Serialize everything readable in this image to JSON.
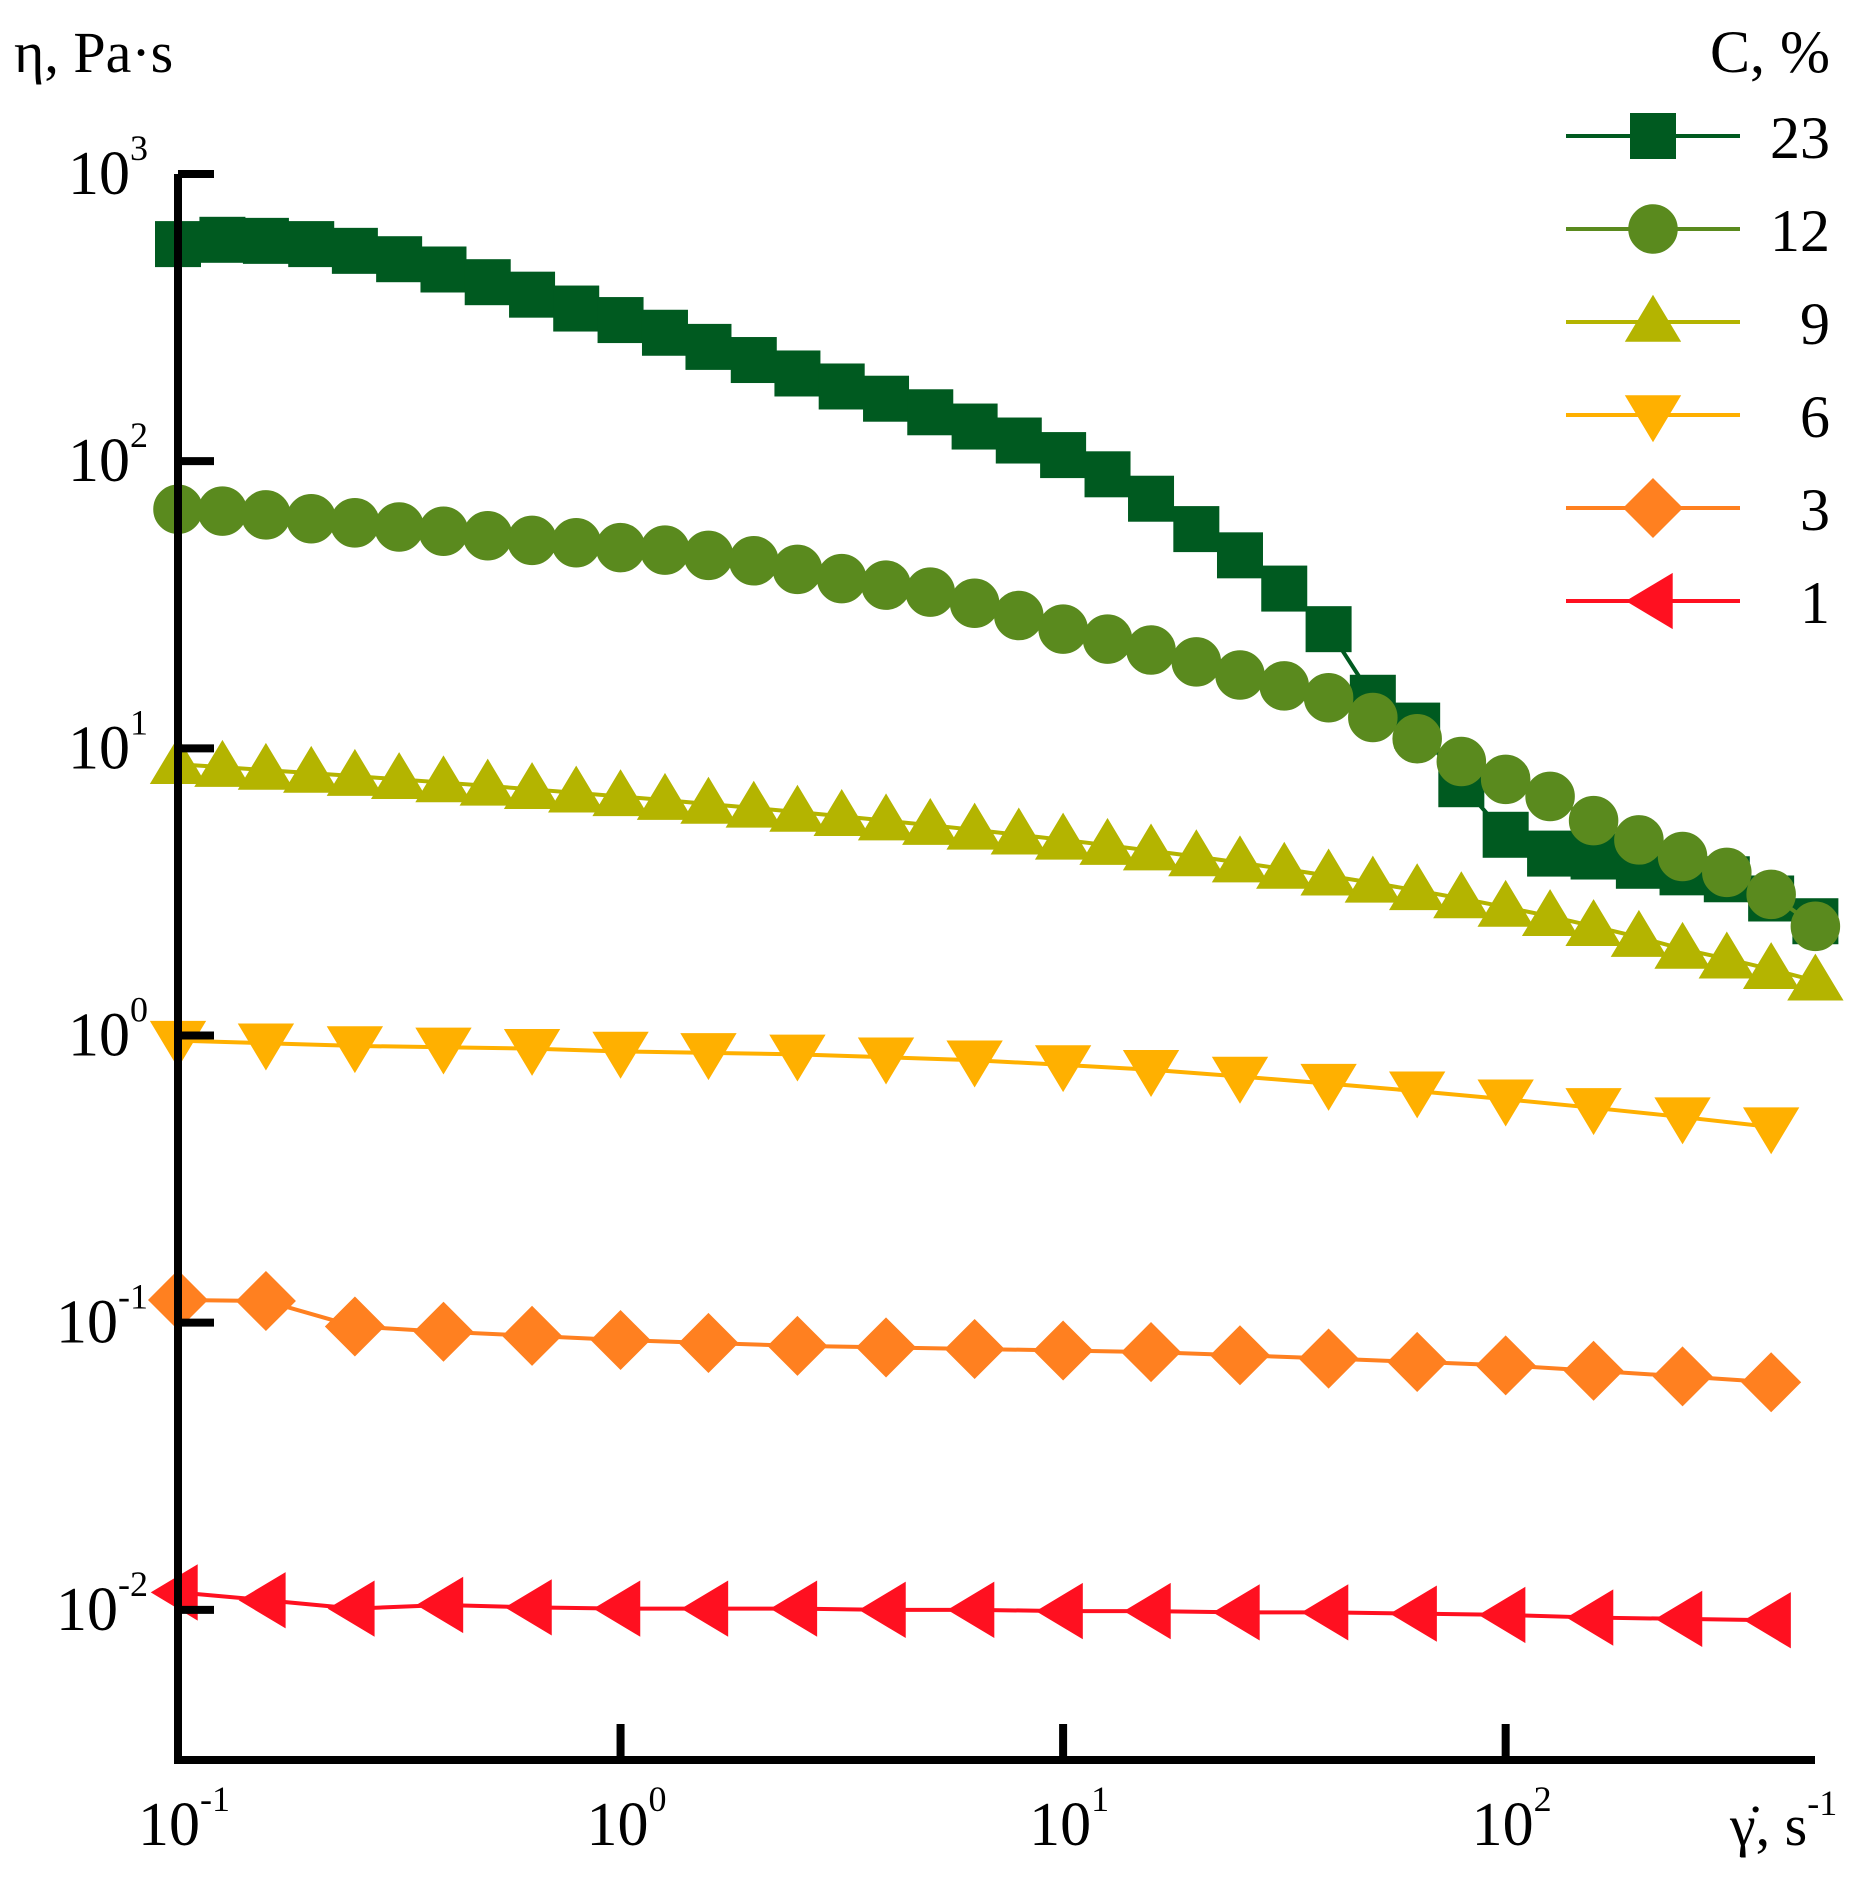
{
  "chart_data": {
    "type": "line",
    "x_scale": "log",
    "y_scale": "log",
    "xlim": [
      0.1,
      500
    ],
    "ylim": [
      0.003,
      1000
    ],
    "ylabel": "η, Pa·s",
    "xlabel": "γ̇, s",
    "xlabel_exp": "-1",
    "legend_title": "C, %",
    "legend_position": "top-right",
    "x_ticks": [
      {
        "value": 0.1,
        "base": "10",
        "exp": "-1"
      },
      {
        "value": 1,
        "base": "10",
        "exp": "0"
      },
      {
        "value": 10,
        "base": "10",
        "exp": "1"
      },
      {
        "value": 100,
        "base": "10",
        "exp": "2"
      }
    ],
    "y_ticks": [
      {
        "value": 0.01,
        "base": "10",
        "exp": "-2"
      },
      {
        "value": 0.1,
        "base": "10",
        "exp": "-1"
      },
      {
        "value": 1,
        "base": "10",
        "exp": "0"
      },
      {
        "value": 10,
        "base": "10",
        "exp": "1"
      },
      {
        "value": 100,
        "base": "10",
        "exp": "2"
      },
      {
        "value": 1000,
        "base": "10",
        "exp": "3"
      }
    ],
    "series": [
      {
        "name": "23",
        "color": "#005a20",
        "marker": "square",
        "x": [
          0.1,
          0.126,
          0.158,
          0.2,
          0.251,
          0.316,
          0.398,
          0.501,
          0.631,
          0.794,
          1.0,
          1.26,
          1.58,
          2.0,
          2.51,
          3.16,
          3.98,
          5.01,
          6.31,
          7.94,
          10.0,
          12.6,
          15.8,
          20.0,
          25.1,
          31.6,
          39.8,
          50.1,
          63.1,
          79.4,
          100,
          126,
          158,
          200,
          251,
          316,
          398,
          501
        ],
        "values": [
          570,
          590,
          585,
          570,
          540,
          505,
          465,
          420,
          380,
          340,
          310,
          280,
          250,
          225,
          202,
          182,
          165,
          148,
          132,
          118,
          105,
          90,
          74,
          58,
          47,
          36,
          26,
          15,
          12,
          7.5,
          5.0,
          4.3,
          4.2,
          3.9,
          3.7,
          3.5,
          3.0,
          2.5
        ]
      },
      {
        "name": "12",
        "color": "#5a8a1e",
        "marker": "circle",
        "x": [
          0.1,
          0.126,
          0.158,
          0.2,
          0.251,
          0.316,
          0.398,
          0.501,
          0.631,
          0.794,
          1.0,
          1.26,
          1.58,
          2.0,
          2.51,
          3.16,
          3.98,
          5.01,
          6.31,
          7.94,
          10.0,
          12.6,
          15.8,
          20.0,
          25.1,
          31.6,
          39.8,
          50.1,
          63.1,
          79.4,
          100,
          126,
          158,
          200,
          251,
          316,
          398,
          501
        ],
        "values": [
          68,
          67,
          65,
          63,
          61,
          59,
          57,
          55,
          53,
          52,
          50,
          49,
          47,
          45,
          42,
          39,
          37,
          35,
          32,
          29,
          26,
          24,
          22,
          20,
          18,
          16.5,
          15,
          12.8,
          10.8,
          9.0,
          7.8,
          6.8,
          5.6,
          4.8,
          4.2,
          3.7,
          3.1,
          2.4
        ]
      },
      {
        "name": "9",
        "color": "#b4b400",
        "marker": "triangle-up",
        "x": [
          0.1,
          0.126,
          0.158,
          0.2,
          0.251,
          0.316,
          0.398,
          0.501,
          0.631,
          0.794,
          1.0,
          1.26,
          1.58,
          2.0,
          2.51,
          3.16,
          3.98,
          5.01,
          6.31,
          7.94,
          10.0,
          12.6,
          15.8,
          20.0,
          25.1,
          31.6,
          39.8,
          50.1,
          63.1,
          79.4,
          100,
          126,
          158,
          200,
          251,
          316,
          398,
          501
        ],
        "values": [
          8.8,
          8.6,
          8.4,
          8.2,
          8.0,
          7.8,
          7.6,
          7.4,
          7.2,
          7.0,
          6.8,
          6.6,
          6.4,
          6.2,
          6.0,
          5.8,
          5.6,
          5.4,
          5.2,
          5.0,
          4.8,
          4.6,
          4.4,
          4.2,
          4.0,
          3.8,
          3.6,
          3.4,
          3.2,
          3.0,
          2.8,
          2.6,
          2.4,
          2.2,
          2.0,
          1.85,
          1.7,
          1.55
        ]
      },
      {
        "name": "6",
        "color": "#ffb000",
        "marker": "triangle-down",
        "x": [
          0.1,
          0.158,
          0.251,
          0.398,
          0.631,
          1.0,
          1.58,
          2.51,
          3.98,
          6.31,
          10.0,
          15.8,
          25.1,
          39.8,
          63.1,
          100,
          158,
          251,
          398
        ],
        "values": [
          0.96,
          0.94,
          0.92,
          0.91,
          0.9,
          0.88,
          0.87,
          0.86,
          0.84,
          0.82,
          0.79,
          0.76,
          0.72,
          0.68,
          0.64,
          0.6,
          0.56,
          0.52,
          0.48
        ]
      },
      {
        "name": "3",
        "color": "#ff8020",
        "marker": "diamond",
        "x": [
          0.1,
          0.158,
          0.251,
          0.398,
          0.631,
          1.0,
          1.58,
          2.51,
          3.98,
          6.31,
          10.0,
          15.8,
          25.1,
          39.8,
          63.1,
          100,
          158,
          251,
          398
        ],
        "values": [
          0.12,
          0.119,
          0.097,
          0.093,
          0.09,
          0.087,
          0.085,
          0.083,
          0.082,
          0.081,
          0.08,
          0.079,
          0.077,
          0.075,
          0.073,
          0.071,
          0.068,
          0.065,
          0.062
        ]
      },
      {
        "name": "1",
        "color": "#ff1020",
        "marker": "triangle-left",
        "x": [
          0.1,
          0.158,
          0.251,
          0.398,
          0.631,
          1.0,
          1.58,
          2.51,
          3.98,
          6.31,
          10.0,
          15.8,
          25.1,
          39.8,
          63.1,
          100,
          158,
          251,
          398
        ],
        "values": [
          0.0115,
          0.0108,
          0.0101,
          0.0104,
          0.0102,
          0.0101,
          0.0101,
          0.0101,
          0.01,
          0.01,
          0.0099,
          0.0099,
          0.0098,
          0.0098,
          0.0097,
          0.0096,
          0.0094,
          0.0093,
          0.0092
        ]
      }
    ]
  }
}
